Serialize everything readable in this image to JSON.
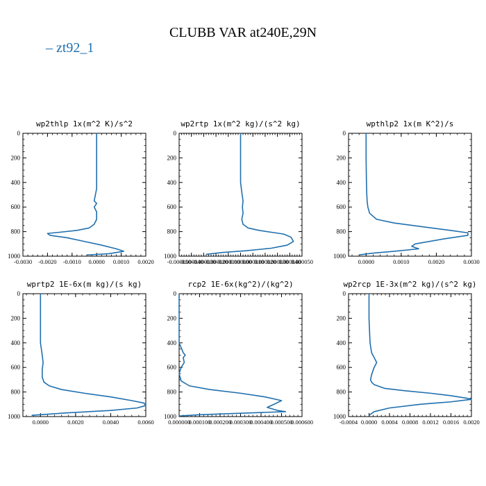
{
  "page": {
    "title": "CLUBB VAR at240E,29N",
    "legend": [
      {
        "label": "zt92_1",
        "color": "#1f6fae"
      }
    ],
    "line_color": "#1f6fae"
  },
  "chart_data": [
    {
      "type": "line",
      "title": "wp2thlp   1x(m^2 K)/s^2",
      "xlim": [
        -0.003,
        0.002
      ],
      "ylim": [
        1000,
        0
      ],
      "xticks": [
        -0.003,
        -0.002,
        -0.001,
        0.0,
        0.001,
        0.002
      ],
      "xticklabels": [
        "-0.0030",
        "-0.0020",
        "-0.0010",
        "0.0000",
        "0.0010",
        "0.0020"
      ],
      "yticks": [
        0,
        200,
        400,
        600,
        800,
        1000
      ],
      "yticklabels": [
        "0",
        "200",
        "400",
        "600",
        "800",
        "1000"
      ],
      "series": [
        {
          "name": "zt92_1",
          "x": [
            0.0,
            0.0,
            0.0,
            0.0,
            -0.0001,
            0.0,
            -0.0001,
            0.0,
            0.0,
            -0.0001,
            -0.0003,
            -0.0008,
            -0.0015,
            -0.002,
            -0.0019,
            -0.0012,
            -0.0005,
            0.0002,
            0.0008,
            0.0011,
            0.0005,
            -0.0004
          ],
          "y": [
            0,
            200,
            380,
            450,
            550,
            570,
            600,
            640,
            700,
            740,
            770,
            790,
            805,
            815,
            830,
            850,
            880,
            910,
            940,
            960,
            980,
            990
          ]
        }
      ]
    },
    {
      "type": "line",
      "title": "wp2rtp   1x(m^2 kg)/(s^2 kg)",
      "xlim": [
        -5e-05,
        5e-05
      ],
      "ylim": [
        1000,
        0
      ],
      "xticks": [
        -5e-05,
        -4e-05,
        -3e-05,
        -2e-05,
        -1e-05,
        0.0,
        1e-05,
        2e-05,
        3e-05,
        4e-05,
        5e-05
      ],
      "xticklabels": [
        "-0.000050",
        "-0.000040",
        "-0.000030",
        "-0.000020",
        "-0.000010",
        "0.000000",
        "0.000010",
        "0.000020",
        "0.000030",
        "0.000040",
        "0.000050"
      ],
      "yticks": [
        0,
        200,
        400,
        600,
        800,
        1000
      ],
      "yticklabels": [
        "0",
        "200",
        "400",
        "600",
        "800",
        "1000"
      ],
      "series": [
        {
          "name": "zt92_1",
          "x": [
            0.0,
            0.0,
            0.0,
            1e-06,
            2e-06,
            1.5e-06,
            2e-06,
            1e-06,
            2e-06,
            6e-06,
            1.5e-05,
            2.5e-05,
            3.5e-05,
            4.1e-05,
            4.3e-05,
            3.8e-05,
            2.5e-05,
            5e-06,
            -1.5e-05,
            -2.8e-05
          ],
          "y": [
            0,
            200,
            400,
            480,
            550,
            600,
            650,
            700,
            740,
            770,
            790,
            805,
            820,
            845,
            880,
            910,
            935,
            955,
            970,
            985
          ]
        }
      ]
    },
    {
      "type": "line",
      "title": "wpthlp2   1x(m K^2)/s",
      "xlim": [
        -0.0005,
        0.003
      ],
      "ylim": [
        1000,
        0
      ],
      "xticks": [
        0.0,
        0.001,
        0.002,
        0.003
      ],
      "xticklabels": [
        "0.0000",
        "0.0010",
        "0.0020",
        "0.0030"
      ],
      "yticks": [
        0,
        200,
        400,
        600,
        800,
        1000
      ],
      "yticklabels": [
        "0",
        "200",
        "400",
        "600",
        "800",
        "1000"
      ],
      "series": [
        {
          "name": "zt92_1",
          "x": [
            0.0,
            0.0,
            1e-05,
            2e-05,
            3e-05,
            5e-05,
            0.0001,
            0.0003,
            0.0008,
            0.0016,
            0.0024,
            0.0029,
            0.0029,
            0.0022,
            0.0014,
            0.0013,
            0.0015,
            0.0008,
            0.0002,
            -0.0002
          ],
          "y": [
            0,
            200,
            400,
            500,
            550,
            600,
            650,
            700,
            730,
            760,
            790,
            810,
            830,
            860,
            900,
            920,
            940,
            960,
            975,
            990
          ]
        }
      ]
    },
    {
      "type": "line",
      "title": "wprtp2   1E-6x(m kg)/(s kg)",
      "xlim": [
        -0.001,
        0.006
      ],
      "ylim": [
        1000,
        0
      ],
      "xticks": [
        0.0,
        0.002,
        0.004,
        0.006
      ],
      "xticklabels": [
        "0.0000",
        "0.0020",
        "0.0040",
        "0.0060"
      ],
      "yticks": [
        0,
        200,
        400,
        600,
        800,
        1000
      ],
      "yticklabels": [
        "0",
        "200",
        "400",
        "600",
        "800",
        "1000"
      ],
      "series": [
        {
          "name": "zt92_1",
          "x": [
            0.0,
            0.0,
            0.0,
            5e-05,
            0.0001,
            0.00015,
            0.0001,
            0.0001,
            0.0002,
            0.0005,
            0.0012,
            0.0025,
            0.004,
            0.0052,
            0.0059,
            0.006,
            0.0055,
            0.004,
            0.0015,
            -0.0005
          ],
          "y": [
            0,
            200,
            400,
            450,
            500,
            560,
            620,
            680,
            720,
            750,
            780,
            810,
            840,
            870,
            890,
            910,
            930,
            950,
            970,
            990
          ]
        }
      ]
    },
    {
      "type": "line",
      "title": "rcp2   1E-6x(kg^2)/(kg^2)",
      "xlim": [
        0.0,
        0.0006
      ],
      "ylim": [
        1000,
        0
      ],
      "xticks": [
        0.0,
        0.0001,
        0.0002,
        0.0003,
        0.0004,
        0.0005,
        0.0006
      ],
      "xticklabels": [
        "0.000000",
        "0.000100",
        "0.000200",
        "0.000300",
        "0.000400",
        "0.000500",
        "0.000600"
      ],
      "yticks": [
        0,
        200,
        400,
        600,
        800,
        1000
      ],
      "yticklabels": [
        "0",
        "200",
        "400",
        "600",
        "800",
        "1000"
      ],
      "series": [
        {
          "name": "zt92_1",
          "x": [
            0.0,
            0.0,
            0.0,
            2e-05,
            3e-05,
            2e-05,
            2.5e-05,
            1e-05,
            0.0,
            1e-05,
            5e-05,
            0.00015,
            0.0003,
            0.00042,
            0.0005,
            0.00047,
            0.00043,
            0.00048,
            0.00052,
            0.00035,
            0.0001,
            0.0
          ],
          "y": [
            0,
            200,
            400,
            480,
            500,
            520,
            560,
            600,
            650,
            710,
            750,
            780,
            810,
            840,
            870,
            895,
            925,
            950,
            960,
            970,
            985,
            995
          ]
        }
      ]
    },
    {
      "type": "line",
      "title": "wp2rcp   1E-3x(m^2 kg)/(s^2 kg)",
      "xlim": [
        -0.0004,
        0.002
      ],
      "ylim": [
        1000,
        0
      ],
      "xticks": [
        -0.0004,
        0.0,
        0.0004,
        0.0008,
        0.0012,
        0.0016,
        0.002
      ],
      "xticklabels": [
        "-0.0004",
        "0.0000",
        "0.0004",
        "0.0008",
        "0.0012",
        "0.0016",
        "0.0020"
      ],
      "yticks": [
        0,
        200,
        400,
        600,
        800,
        1000
      ],
      "yticklabels": [
        "0",
        "200",
        "400",
        "600",
        "800",
        "1000"
      ],
      "series": [
        {
          "name": "zt92_1",
          "x": [
            0.0,
            0.0,
            2e-05,
            5e-05,
            0.0001,
            0.00015,
            0.0001,
            5e-05,
            3e-05,
            5e-05,
            0.0001,
            0.0003,
            0.0007,
            0.0012,
            0.0016,
            0.0019,
            0.002,
            0.0016,
            0.001,
            0.0004,
            0.0001,
            0.0
          ],
          "y": [
            0,
            200,
            400,
            480,
            520,
            560,
            600,
            660,
            700,
            720,
            740,
            770,
            790,
            810,
            830,
            850,
            860,
            880,
            900,
            930,
            960,
            990
          ]
        }
      ]
    }
  ]
}
